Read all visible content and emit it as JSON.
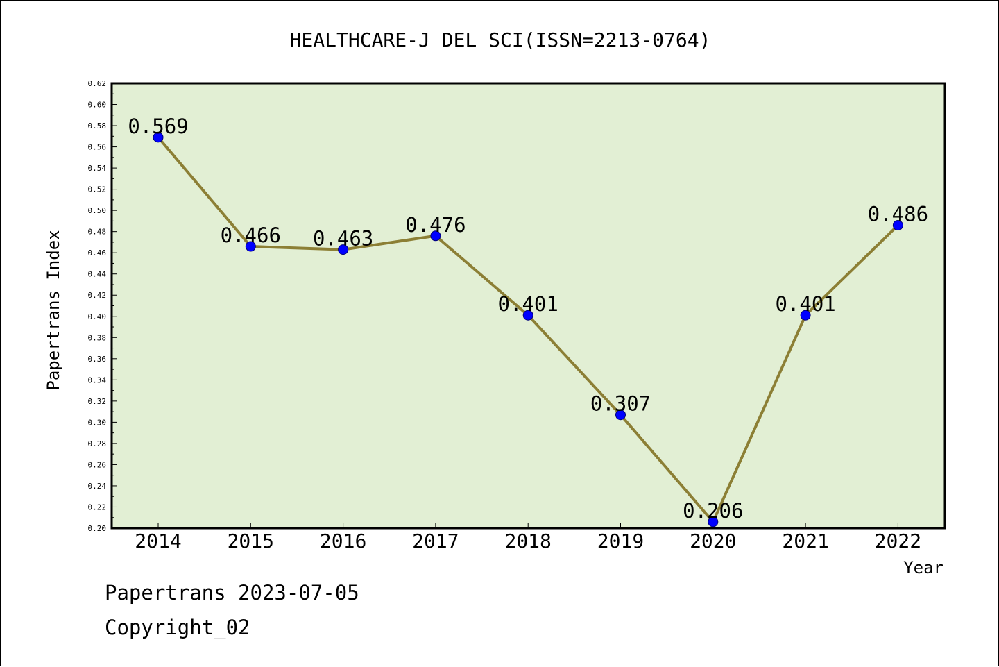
{
  "chart_data": {
    "type": "line",
    "title": "HEALTHCARE-J DEL SCI(ISSN=2213-0764)",
    "xlabel": "Year",
    "ylabel": "Papertrans Index",
    "categories": [
      "2014",
      "2015",
      "2016",
      "2017",
      "2018",
      "2019",
      "2020",
      "2021",
      "2022"
    ],
    "values": [
      0.569,
      0.466,
      0.463,
      0.476,
      0.401,
      0.307,
      0.206,
      0.401,
      0.486
    ],
    "value_labels": [
      "0.569",
      "0.466",
      "0.463",
      "0.476",
      "0.401",
      "0.307",
      "0.206",
      "0.401",
      "0.486"
    ],
    "ylim": [
      0.2,
      0.62
    ],
    "yticks": [
      "0.20",
      "0.22",
      "0.24",
      "0.26",
      "0.28",
      "0.30",
      "0.32",
      "0.34",
      "0.36",
      "0.38",
      "0.40",
      "0.42",
      "0.44",
      "0.46",
      "0.48",
      "0.50",
      "0.52",
      "0.54",
      "0.56",
      "0.58",
      "0.60",
      "0.62"
    ],
    "grid": false,
    "colors": {
      "plot_background": "#e2efd4",
      "line": "#8c7f35",
      "marker": "#0000ff"
    }
  },
  "footer": {
    "date_line": "Papertrans 2023-07-05",
    "copyright_line": "Copyright_02"
  }
}
